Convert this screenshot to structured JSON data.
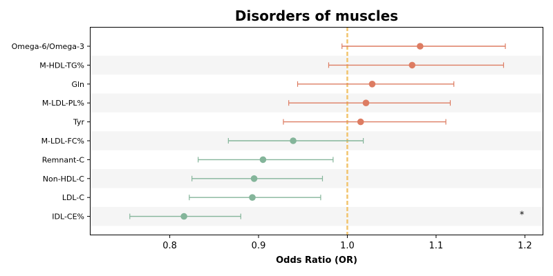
{
  "chart_data": {
    "type": "forest",
    "title": "Disorders of muscles",
    "xlabel": "Odds Ratio (OR)",
    "ylabel": "",
    "xlim": [
      0.71,
      1.22
    ],
    "xticks": [
      0.8,
      0.9,
      1.0,
      1.1,
      1.2
    ],
    "xtick_labels": [
      "0.8",
      "0.9",
      "1.0",
      "1.1",
      "1.2"
    ],
    "reference_line": 1.0,
    "reference_color": "#f2c46d",
    "row_band_color": "#f5f5f5",
    "grid": false,
    "rows": [
      {
        "label": "Omega-6/Omega-3",
        "or": 1.082,
        "lower": 0.994,
        "upper": 1.178,
        "color": "#dd7c62",
        "annotation": ""
      },
      {
        "label": "M-HDL-TG%",
        "or": 1.073,
        "lower": 0.979,
        "upper": 1.176,
        "color": "#dd7c62",
        "annotation": ""
      },
      {
        "label": "Gln",
        "or": 1.028,
        "lower": 0.944,
        "upper": 1.12,
        "color": "#dd7c62",
        "annotation": ""
      },
      {
        "label": "M-LDL-PL%",
        "or": 1.021,
        "lower": 0.934,
        "upper": 1.116,
        "color": "#dd7c62",
        "annotation": ""
      },
      {
        "label": "Tyr",
        "or": 1.015,
        "lower": 0.928,
        "upper": 1.111,
        "color": "#dd7c62",
        "annotation": ""
      },
      {
        "label": "M-LDL-FC%",
        "or": 0.939,
        "lower": 0.866,
        "upper": 1.018,
        "color": "#84b59a",
        "annotation": ""
      },
      {
        "label": "Remnant-C",
        "or": 0.905,
        "lower": 0.832,
        "upper": 0.984,
        "color": "#84b59a",
        "annotation": ""
      },
      {
        "label": "Non-HDL-C",
        "or": 0.895,
        "lower": 0.825,
        "upper": 0.972,
        "color": "#84b59a",
        "annotation": ""
      },
      {
        "label": "LDL-C",
        "or": 0.893,
        "lower": 0.822,
        "upper": 0.97,
        "color": "#84b59a",
        "annotation": ""
      },
      {
        "label": "IDL-CE%",
        "or": 0.816,
        "lower": 0.755,
        "upper": 0.88,
        "color": "#84b59a",
        "annotation": "*"
      }
    ]
  }
}
